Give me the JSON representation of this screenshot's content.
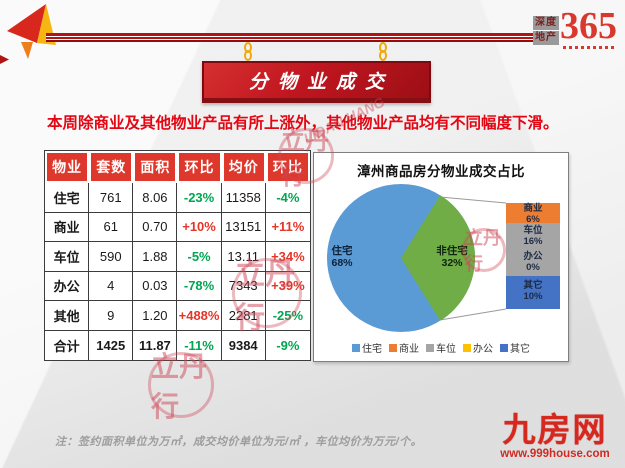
{
  "page": {
    "banner_title": "分物业成交",
    "subtitle": "本周除商业及其他物业产品有所上涨外，其他物业产品均有不同幅度下滑。",
    "footnote": "注：签约面积单位为万㎡，成交均价单位为元/㎡ ，车位均价为万元/个。"
  },
  "brand": {
    "logo_word_top": "深度",
    "logo_word_bottom": "地产",
    "logo_number": "365",
    "site_name": "九房网",
    "site_url": "www.999house.com",
    "watermark_text": "立丹行",
    "watermark_pinyin": "LIDAN HANG"
  },
  "table": {
    "headers": [
      "物业",
      "套数",
      "面积",
      "环比",
      "均价",
      "环比"
    ],
    "rows": [
      [
        "住宅",
        "761",
        "8.06",
        "-23%",
        "11358",
        "-4%"
      ],
      [
        "商业",
        "61",
        "0.70",
        "+10%",
        "13151",
        "+11%"
      ],
      [
        "车位",
        "590",
        "1.88",
        "-5%",
        "13.11",
        "+34%"
      ],
      [
        "办公",
        "4",
        "0.03",
        "-78%",
        "7343",
        "+39%"
      ],
      [
        "其他",
        "9",
        "1.20",
        "+488%",
        "2281",
        "-25%"
      ],
      [
        "合计",
        "1425",
        "11.87",
        "-11%",
        "9384",
        "-9%"
      ]
    ]
  },
  "chart_data": {
    "type": "pie",
    "subtype": "pie-of-pie",
    "title": "漳州商品房分物业成交占比",
    "main_pie": {
      "labels": [
        "住宅",
        "非住宅"
      ],
      "values": [
        68,
        32
      ],
      "value_labels": [
        "68%",
        "32%"
      ],
      "colors": [
        "#5B9BD5",
        "#70AD47"
      ]
    },
    "breakout_bar": {
      "labels": [
        "商业",
        "车位",
        "办公",
        "其它"
      ],
      "values": [
        6,
        16,
        0,
        10
      ],
      "value_labels": [
        "6%",
        "16%",
        "0%",
        "10%"
      ],
      "colors": [
        "#ED7D31",
        "#A5A5A5",
        "#FFC000",
        "#4472C4"
      ]
    },
    "legend": {
      "position": "bottom",
      "items": [
        {
          "label": "住宅",
          "color": "#5B9BD5"
        },
        {
          "label": "商业",
          "color": "#ED7D31"
        },
        {
          "label": "车位",
          "color": "#A5A5A5"
        },
        {
          "label": "办公",
          "color": "#FFC000"
        },
        {
          "label": "其它",
          "color": "#4472C4"
        }
      ]
    }
  },
  "colors": {
    "accent_red": "#C01620",
    "header_red": "#DE382C",
    "positive_red": "#E53528",
    "negative_green": "#00A651",
    "line_red": "#B01414",
    "chain_gold": "#F0A90A"
  }
}
